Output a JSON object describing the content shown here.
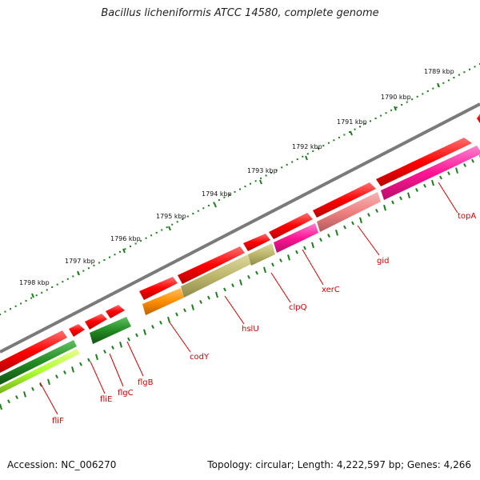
{
  "title": "Bacillus licheniformis ATCC 14580, complete genome",
  "footer": {
    "accession": "Accession: NC_006270",
    "topology": "Topology: circular; Length: 4,222,597 bp; Genes: 4,266"
  },
  "scale": {
    "unit": "kbp",
    "tick_labels": [
      "1789 kbp",
      "1790 kbp",
      "1791 kbp",
      "1792 kbp",
      "1793 kbp",
      "1794 kbp",
      "1795 kbp",
      "1796 kbp",
      "1797 kbp",
      "1798 kbp"
    ]
  },
  "colors": {
    "backbone": "#808080",
    "cds": "#ff0000",
    "tick_dots": "#1e7d1e",
    "label_red": "#d00000"
  },
  "gene_labels": [
    "topA",
    "gid",
    "xerC",
    "clpQ",
    "hslU",
    "codY",
    "flgB",
    "flgC",
    "fliE",
    "fliF"
  ]
}
